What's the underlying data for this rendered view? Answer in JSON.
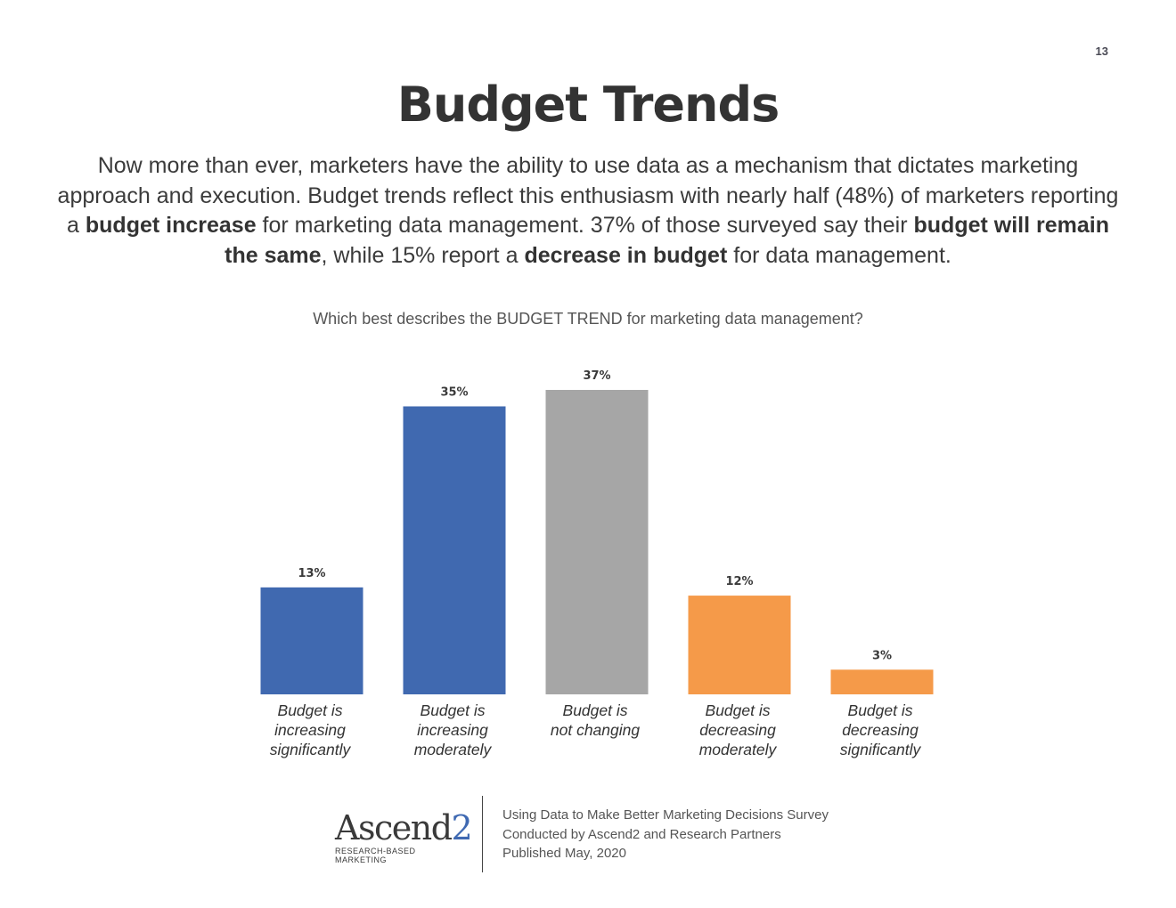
{
  "page_number": "13",
  "title": "Budget Trends",
  "intro": {
    "p1": "Now more than ever, marketers have the ability to use data as a mechanism that dictates marketing approach and execution. Budget trends reflect this enthusiasm with nearly half (48%) of marketers reporting a ",
    "b1": "budget increase",
    "p2": " for marketing data management. 37% of those surveyed say their ",
    "b2": "budget will remain the same",
    "p3": ", while 15% report a ",
    "b3": "decrease in budget",
    "p4": " for data management."
  },
  "chart_data": {
    "type": "bar",
    "title": "Which best describes the BUDGET TREND for marketing data management?",
    "categories": [
      "Budget is increasing significantly",
      "Budget is increasing moderately",
      "Budget is not changing",
      "Budget is decreasing moderately",
      "Budget is decreasing significantly"
    ],
    "category_lines": [
      [
        "Budget is",
        "increasing",
        "significantly"
      ],
      [
        "Budget is",
        "increasing",
        "moderately"
      ],
      [
        "Budget is",
        "not changing"
      ],
      [
        "Budget is",
        "decreasing",
        "moderately"
      ],
      [
        "Budget is",
        "decreasing",
        "significantly"
      ]
    ],
    "values": [
      13,
      35,
      37,
      12,
      3
    ],
    "value_labels": [
      "13%",
      "35%",
      "37%",
      "12%",
      "3%"
    ],
    "colors": [
      "#4069b0",
      "#4069b0",
      "#a6a6a6",
      "#f59a49",
      "#f59a49"
    ],
    "ylim": [
      0,
      37
    ],
    "grid": false,
    "xlabel": "",
    "ylabel": ""
  },
  "footer": {
    "logo_word_main": "Ascend",
    "logo_word_accent": "2",
    "logo_tagline": "RESEARCH-BASED MARKETING",
    "line1": "Using Data to Make Better Marketing Decisions Survey",
    "line2": "Conducted  by Ascend2 and Research Partners",
    "line3": "Published May, 2020"
  }
}
